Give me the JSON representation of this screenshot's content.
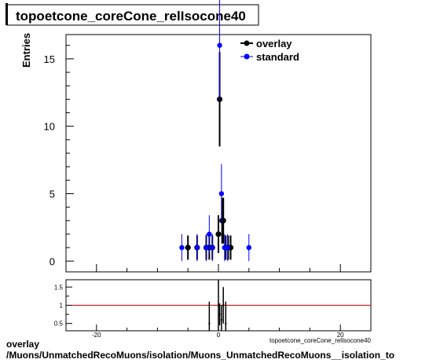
{
  "chart_data": [
    {
      "type": "scatter",
      "title": "topoetcone_coreCone_relIsocone40",
      "xlabel": "topoetcone_coreCone_relIsocone40",
      "ylabel": "Entries",
      "xlim": [
        -25,
        25
      ],
      "ylim": [
        -0.8,
        16.8
      ],
      "xticks": [
        -20,
        0,
        20
      ],
      "yticks": [
        0,
        5,
        10,
        15
      ],
      "legend_position": "top-right",
      "grid": false,
      "series": [
        {
          "name": "overlay",
          "color": "#000000",
          "marker": "circle",
          "points": [
            {
              "x": -5.0,
              "y": 1,
              "err": 0.9
            },
            {
              "x": -3.5,
              "y": 1,
              "err": 0.9
            },
            {
              "x": -2.0,
              "y": 1,
              "err": 0.9
            },
            {
              "x": -1.5,
              "y": 1,
              "err": 0.9
            },
            {
              "x": -1.0,
              "y": 1,
              "err": 0.9
            },
            {
              "x": 0.0,
              "y": 2,
              "err": 1.4
            },
            {
              "x": 0.2,
              "y": 12,
              "err": 3.5
            },
            {
              "x": 0.6,
              "y": 3,
              "err": 1.7
            },
            {
              "x": 0.8,
              "y": 3,
              "err": 1.7
            },
            {
              "x": 1.2,
              "y": 1,
              "err": 0.9
            },
            {
              "x": 1.6,
              "y": 1,
              "err": 0.9
            },
            {
              "x": 2.0,
              "y": 1,
              "err": 0.9
            }
          ]
        },
        {
          "name": "standard",
          "color": "#0000ff",
          "marker": "circle",
          "points": [
            {
              "x": -6.0,
              "y": 1,
              "err": 1.0
            },
            {
              "x": -3.5,
              "y": 1,
              "err": 1.0
            },
            {
              "x": -2.0,
              "y": 1,
              "err": 1.0
            },
            {
              "x": -1.5,
              "y": 2,
              "err": 1.4
            },
            {
              "x": -1.0,
              "y": 1,
              "err": 1.0
            },
            {
              "x": 0.2,
              "y": 16,
              "err": 4.0
            },
            {
              "x": 0.5,
              "y": 5,
              "err": 2.2
            },
            {
              "x": 1.0,
              "y": 1,
              "err": 1.0
            },
            {
              "x": 1.5,
              "y": 1,
              "err": 1.0
            },
            {
              "x": 5.0,
              "y": 1,
              "err": 1.0
            }
          ]
        }
      ]
    },
    {
      "type": "scatter",
      "title": "",
      "xlabel": "",
      "ylabel": "",
      "xlim": [
        -25,
        25
      ],
      "ylim": [
        0.3,
        1.7
      ],
      "xticks": [
        -20,
        0,
        20
      ],
      "yticks": [
        0.5,
        1,
        1.5
      ],
      "reference_line": {
        "y": 1,
        "color": "#cc0000"
      },
      "ratio_points": [
        {
          "x": -1.5,
          "y": 0.5,
          "err": 0.6
        },
        {
          "x": 0.0,
          "y": 1.0,
          "err": 0.7
        },
        {
          "x": 0.2,
          "y": 0.75,
          "err": 0.3
        },
        {
          "x": 0.5,
          "y": 0.6,
          "err": 0.4
        },
        {
          "x": 0.8,
          "y": 1.0,
          "err": 0.5
        },
        {
          "x": 1.2,
          "y": 0.5,
          "err": 0.6
        }
      ]
    }
  ],
  "footer": {
    "line1": "overlay",
    "line2": "/Muons/UnmatchedRecoMuons/isolation/Muons_UnmatchedRecoMuons__isolation_to"
  }
}
